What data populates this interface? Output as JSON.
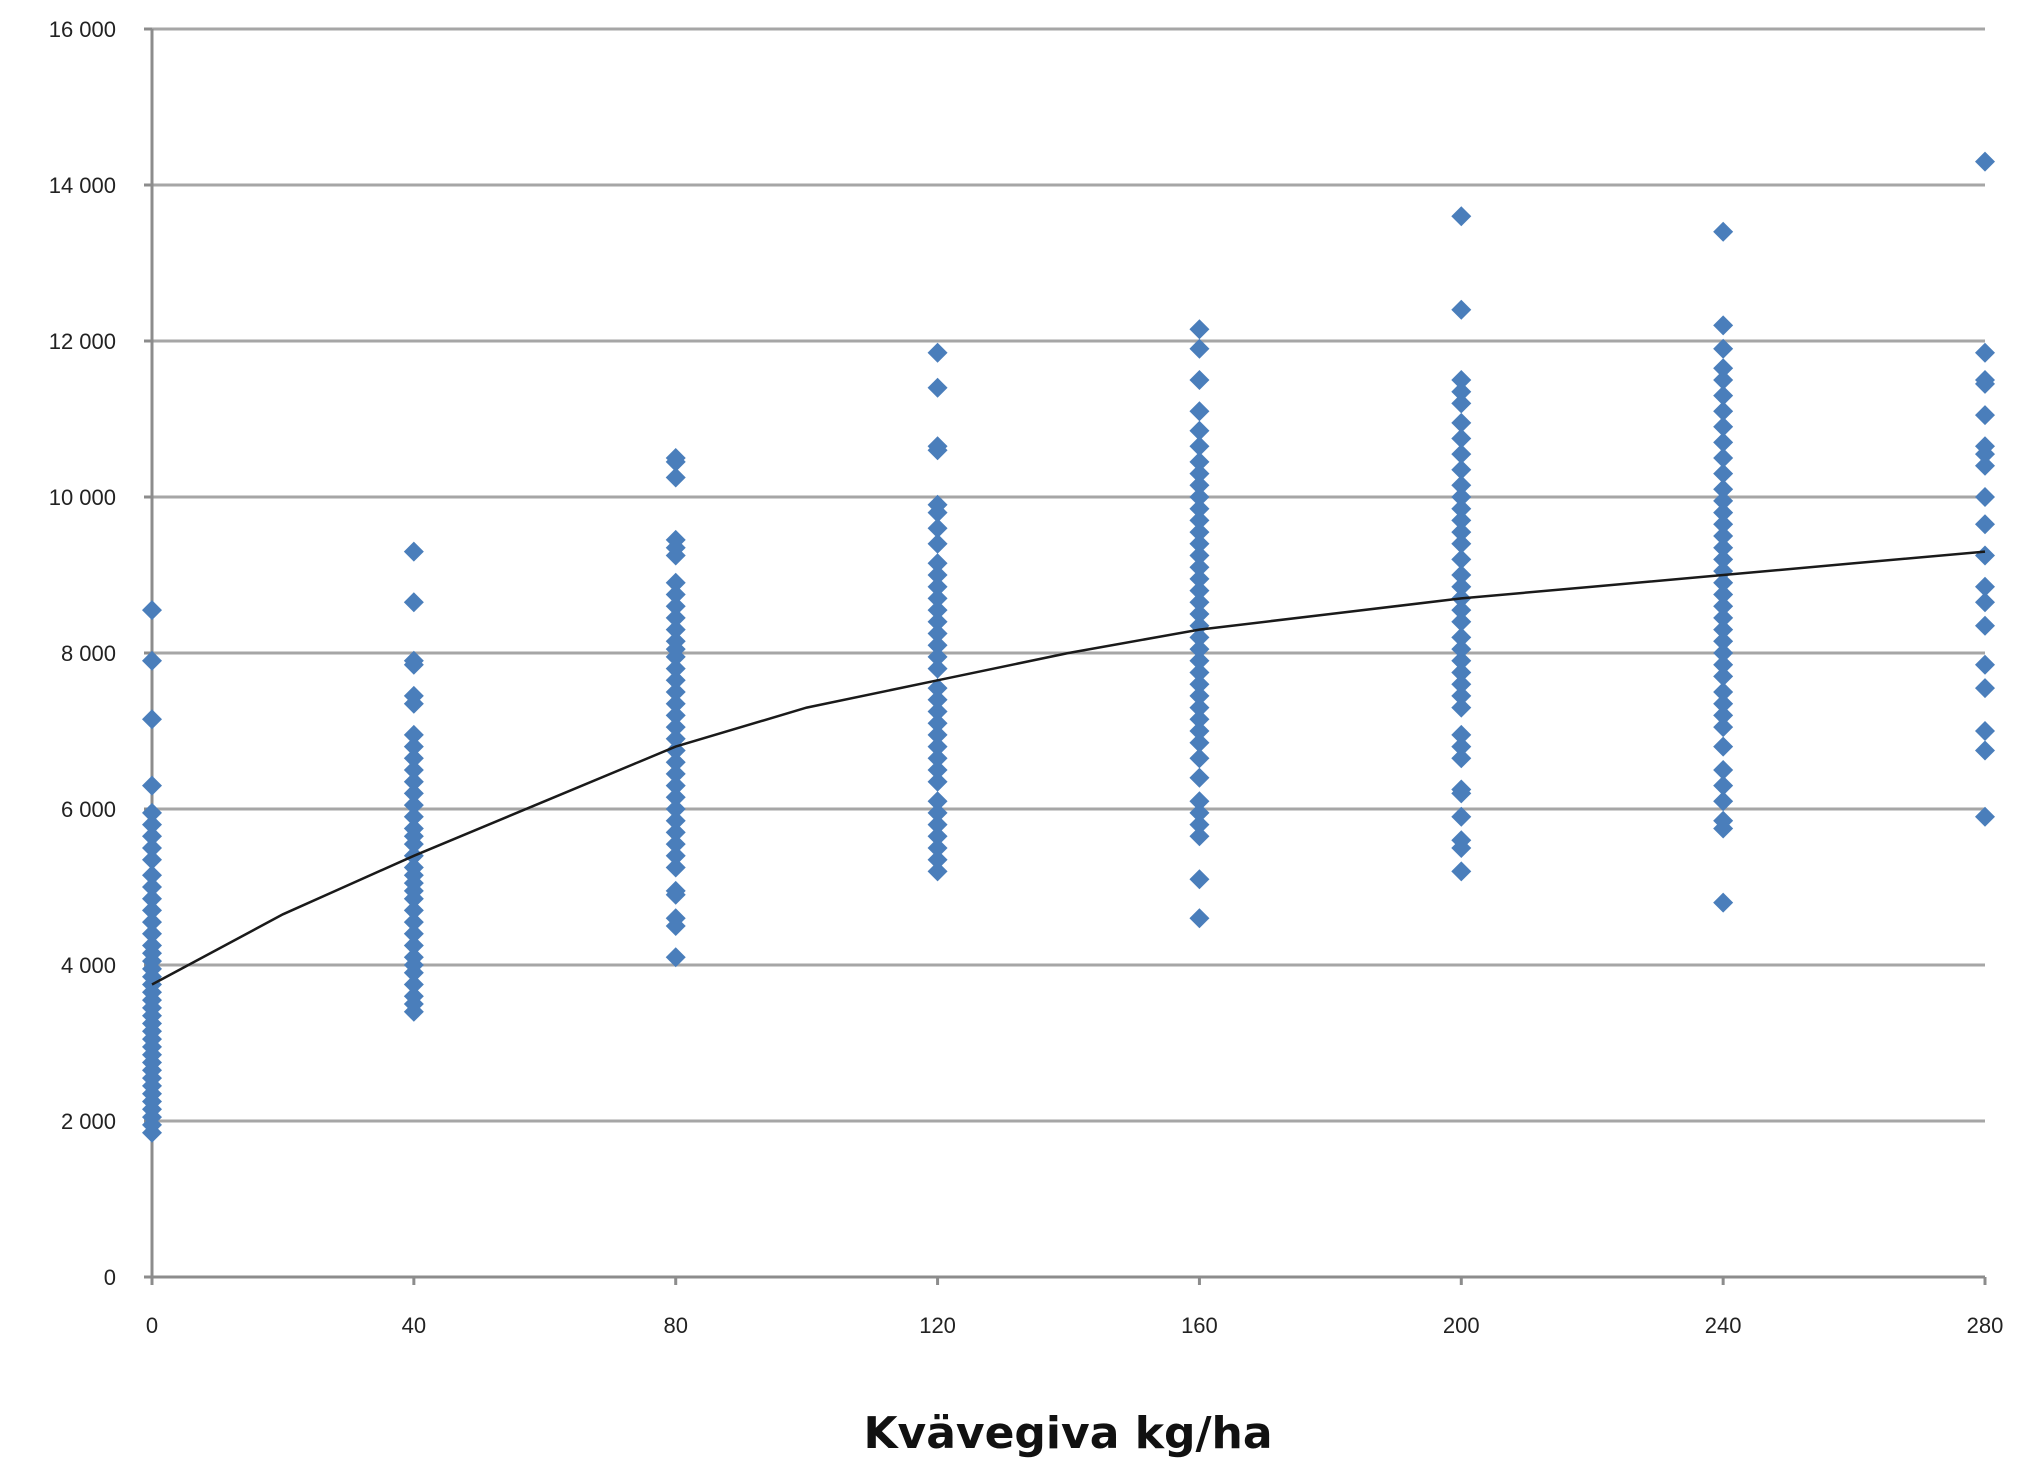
{
  "chart_data": {
    "type": "scatter",
    "title": "",
    "xlabel": "Kvävegiva kg/ha",
    "ylabel": "",
    "xlim": [
      0,
      280
    ],
    "ylim": [
      0,
      16000
    ],
    "x_ticks": [
      0,
      40,
      80,
      120,
      160,
      200,
      240,
      280
    ],
    "y_ticks": [
      0,
      2000,
      4000,
      6000,
      8000,
      10000,
      12000,
      14000,
      16000
    ],
    "x_tick_labels": [
      "0",
      "40",
      "80",
      "120",
      "160",
      "200",
      "240",
      "280"
    ],
    "y_tick_labels": [
      "0",
      "2 000",
      "4 000",
      "6 000",
      "8 000",
      "10 000",
      "12 000",
      "14 000",
      "16 000"
    ],
    "grid": "horizontal",
    "legend": "none",
    "colors": {
      "points": "#4a7ebb",
      "trend": "#1a1a1a",
      "grid": "#a6a6a6",
      "axis": "#8c8c8c"
    },
    "point_marker": "diamond",
    "series": [
      {
        "type": "scatter",
        "points": [
          [
            0,
            8550
          ],
          [
            0,
            7900
          ],
          [
            0,
            7150
          ],
          [
            0,
            6300
          ],
          [
            0,
            5950
          ],
          [
            0,
            5800
          ],
          [
            0,
            5650
          ],
          [
            0,
            5500
          ],
          [
            0,
            5350
          ],
          [
            0,
            5150
          ],
          [
            0,
            5000
          ],
          [
            0,
            4850
          ],
          [
            0,
            4700
          ],
          [
            0,
            4550
          ],
          [
            0,
            4400
          ],
          [
            0,
            4250
          ],
          [
            0,
            4150
          ],
          [
            0,
            4050
          ],
          [
            0,
            3950
          ],
          [
            0,
            3850
          ],
          [
            0,
            3750
          ],
          [
            0,
            3650
          ],
          [
            0,
            3550
          ],
          [
            0,
            3450
          ],
          [
            0,
            3350
          ],
          [
            0,
            3250
          ],
          [
            0,
            3150
          ],
          [
            0,
            3050
          ],
          [
            0,
            2950
          ],
          [
            0,
            2850
          ],
          [
            0,
            2750
          ],
          [
            0,
            2650
          ],
          [
            0,
            2550
          ],
          [
            0,
            2450
          ],
          [
            0,
            2350
          ],
          [
            0,
            2250
          ],
          [
            0,
            2150
          ],
          [
            0,
            2050
          ],
          [
            0,
            1950
          ],
          [
            0,
            1850
          ],
          [
            40,
            9300
          ],
          [
            40,
            8650
          ],
          [
            40,
            7900
          ],
          [
            40,
            7850
          ],
          [
            40,
            7450
          ],
          [
            40,
            7350
          ],
          [
            40,
            6950
          ],
          [
            40,
            6800
          ],
          [
            40,
            6650
          ],
          [
            40,
            6500
          ],
          [
            40,
            6350
          ],
          [
            40,
            6200
          ],
          [
            40,
            6050
          ],
          [
            40,
            5900
          ],
          [
            40,
            5750
          ],
          [
            40,
            5650
          ],
          [
            40,
            5550
          ],
          [
            40,
            5400
          ],
          [
            40,
            5250
          ],
          [
            40,
            5150
          ],
          [
            40,
            5050
          ],
          [
            40,
            4950
          ],
          [
            40,
            4850
          ],
          [
            40,
            4700
          ],
          [
            40,
            4550
          ],
          [
            40,
            4400
          ],
          [
            40,
            4250
          ],
          [
            40,
            4100
          ],
          [
            40,
            4000
          ],
          [
            40,
            3900
          ],
          [
            40,
            3750
          ],
          [
            40,
            3600
          ],
          [
            40,
            3500
          ],
          [
            40,
            3400
          ],
          [
            80,
            10500
          ],
          [
            80,
            10450
          ],
          [
            80,
            10250
          ],
          [
            80,
            9450
          ],
          [
            80,
            9350
          ],
          [
            80,
            9250
          ],
          [
            80,
            8900
          ],
          [
            80,
            8750
          ],
          [
            80,
            8600
          ],
          [
            80,
            8450
          ],
          [
            80,
            8300
          ],
          [
            80,
            8150
          ],
          [
            80,
            8050
          ],
          [
            80,
            7950
          ],
          [
            80,
            7800
          ],
          [
            80,
            7650
          ],
          [
            80,
            7500
          ],
          [
            80,
            7350
          ],
          [
            80,
            7200
          ],
          [
            80,
            7050
          ],
          [
            80,
            6900
          ],
          [
            80,
            6750
          ],
          [
            80,
            6600
          ],
          [
            80,
            6450
          ],
          [
            80,
            6300
          ],
          [
            80,
            6150
          ],
          [
            80,
            6000
          ],
          [
            80,
            5850
          ],
          [
            80,
            5700
          ],
          [
            80,
            5550
          ],
          [
            80,
            5400
          ],
          [
            80,
            5250
          ],
          [
            80,
            4950
          ],
          [
            80,
            4900
          ],
          [
            80,
            4600
          ],
          [
            80,
            4500
          ],
          [
            80,
            4100
          ],
          [
            120,
            11850
          ],
          [
            120,
            11400
          ],
          [
            120,
            10650
          ],
          [
            120,
            10600
          ],
          [
            120,
            9900
          ],
          [
            120,
            9800
          ],
          [
            120,
            9600
          ],
          [
            120,
            9400
          ],
          [
            120,
            9150
          ],
          [
            120,
            9000
          ],
          [
            120,
            8850
          ],
          [
            120,
            8700
          ],
          [
            120,
            8550
          ],
          [
            120,
            8400
          ],
          [
            120,
            8250
          ],
          [
            120,
            8100
          ],
          [
            120,
            7950
          ],
          [
            120,
            7800
          ],
          [
            120,
            7550
          ],
          [
            120,
            7400
          ],
          [
            120,
            7250
          ],
          [
            120,
            7100
          ],
          [
            120,
            6950
          ],
          [
            120,
            6800
          ],
          [
            120,
            6650
          ],
          [
            120,
            6500
          ],
          [
            120,
            6350
          ],
          [
            120,
            6100
          ],
          [
            120,
            5950
          ],
          [
            120,
            5800
          ],
          [
            120,
            5650
          ],
          [
            120,
            5500
          ],
          [
            120,
            5350
          ],
          [
            120,
            5200
          ],
          [
            160,
            12150
          ],
          [
            160,
            11900
          ],
          [
            160,
            11500
          ],
          [
            160,
            11100
          ],
          [
            160,
            10850
          ],
          [
            160,
            10650
          ],
          [
            160,
            10450
          ],
          [
            160,
            10300
          ],
          [
            160,
            10150
          ],
          [
            160,
            10000
          ],
          [
            160,
            9850
          ],
          [
            160,
            9700
          ],
          [
            160,
            9550
          ],
          [
            160,
            9400
          ],
          [
            160,
            9250
          ],
          [
            160,
            9100
          ],
          [
            160,
            8950
          ],
          [
            160,
            8800
          ],
          [
            160,
            8650
          ],
          [
            160,
            8500
          ],
          [
            160,
            8350
          ],
          [
            160,
            8200
          ],
          [
            160,
            8050
          ],
          [
            160,
            7900
          ],
          [
            160,
            7750
          ],
          [
            160,
            7600
          ],
          [
            160,
            7450
          ],
          [
            160,
            7300
          ],
          [
            160,
            7150
          ],
          [
            160,
            7000
          ],
          [
            160,
            6850
          ],
          [
            160,
            6650
          ],
          [
            160,
            6400
          ],
          [
            160,
            6100
          ],
          [
            160,
            5950
          ],
          [
            160,
            5800
          ],
          [
            160,
            5650
          ],
          [
            160,
            5100
          ],
          [
            160,
            4600
          ],
          [
            200,
            13600
          ],
          [
            200,
            12400
          ],
          [
            200,
            11500
          ],
          [
            200,
            11350
          ],
          [
            200,
            11200
          ],
          [
            200,
            10950
          ],
          [
            200,
            10750
          ],
          [
            200,
            10550
          ],
          [
            200,
            10350
          ],
          [
            200,
            10150
          ],
          [
            200,
            10000
          ],
          [
            200,
            9850
          ],
          [
            200,
            9700
          ],
          [
            200,
            9550
          ],
          [
            200,
            9400
          ],
          [
            200,
            9200
          ],
          [
            200,
            9000
          ],
          [
            200,
            8850
          ],
          [
            200,
            8700
          ],
          [
            200,
            8550
          ],
          [
            200,
            8400
          ],
          [
            200,
            8200
          ],
          [
            200,
            8050
          ],
          [
            200,
            7900
          ],
          [
            200,
            7750
          ],
          [
            200,
            7600
          ],
          [
            200,
            7450
          ],
          [
            200,
            7300
          ],
          [
            200,
            6950
          ],
          [
            200,
            6800
          ],
          [
            200,
            6650
          ],
          [
            200,
            6250
          ],
          [
            200,
            6200
          ],
          [
            200,
            5900
          ],
          [
            200,
            5600
          ],
          [
            200,
            5500
          ],
          [
            200,
            5200
          ],
          [
            240,
            13400
          ],
          [
            240,
            12200
          ],
          [
            240,
            11900
          ],
          [
            240,
            11650
          ],
          [
            240,
            11500
          ],
          [
            240,
            11300
          ],
          [
            240,
            11100
          ],
          [
            240,
            10900
          ],
          [
            240,
            10700
          ],
          [
            240,
            10500
          ],
          [
            240,
            10300
          ],
          [
            240,
            10100
          ],
          [
            240,
            9950
          ],
          [
            240,
            9800
          ],
          [
            240,
            9650
          ],
          [
            240,
            9500
          ],
          [
            240,
            9350
          ],
          [
            240,
            9200
          ],
          [
            240,
            9050
          ],
          [
            240,
            8900
          ],
          [
            240,
            8750
          ],
          [
            240,
            8600
          ],
          [
            240,
            8450
          ],
          [
            240,
            8300
          ],
          [
            240,
            8150
          ],
          [
            240,
            8000
          ],
          [
            240,
            7850
          ],
          [
            240,
            7700
          ],
          [
            240,
            7500
          ],
          [
            240,
            7350
          ],
          [
            240,
            7200
          ],
          [
            240,
            7050
          ],
          [
            240,
            6800
          ],
          [
            240,
            6500
          ],
          [
            240,
            6300
          ],
          [
            240,
            6100
          ],
          [
            240,
            5850
          ],
          [
            240,
            5750
          ],
          [
            240,
            4800
          ],
          [
            280,
            14300
          ],
          [
            280,
            11850
          ],
          [
            280,
            11500
          ],
          [
            280,
            11450
          ],
          [
            280,
            11050
          ],
          [
            280,
            10650
          ],
          [
            280,
            10550
          ],
          [
            280,
            10400
          ],
          [
            280,
            10000
          ],
          [
            280,
            9650
          ],
          [
            280,
            9250
          ],
          [
            280,
            8850
          ],
          [
            280,
            8650
          ],
          [
            280,
            8350
          ],
          [
            280,
            7850
          ],
          [
            280,
            7550
          ],
          [
            280,
            7000
          ],
          [
            280,
            6750
          ],
          [
            280,
            5900
          ]
        ]
      },
      {
        "type": "line",
        "points": [
          [
            0,
            3750
          ],
          [
            20,
            4650
          ],
          [
            40,
            5400
          ],
          [
            60,
            6100
          ],
          [
            80,
            6800
          ],
          [
            100,
            7300
          ],
          [
            120,
            7650
          ],
          [
            140,
            8000
          ],
          [
            160,
            8300
          ],
          [
            180,
            8500
          ],
          [
            200,
            8700
          ],
          [
            220,
            8850
          ],
          [
            240,
            9000
          ],
          [
            260,
            9150
          ],
          [
            280,
            9300
          ]
        ]
      }
    ]
  }
}
